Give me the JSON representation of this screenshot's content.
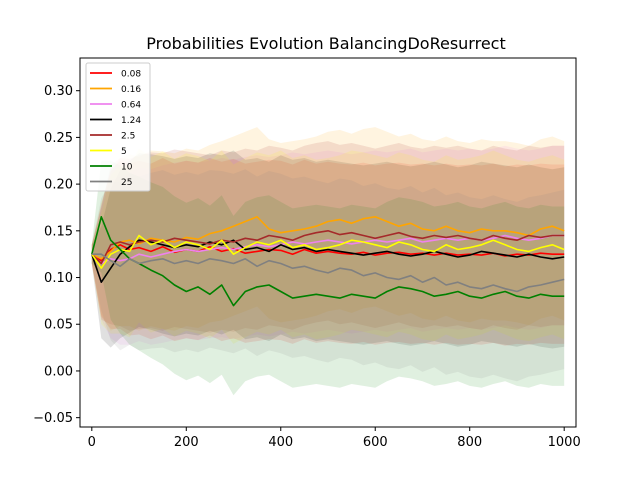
{
  "chart_data": {
    "type": "line",
    "title": "Probabilities Evolution BalancingDoResurrect",
    "xlabel": "",
    "ylabel": "",
    "xlim": [
      -25,
      1025
    ],
    "ylim": [
      -0.06,
      0.335
    ],
    "xticks": [
      0,
      200,
      400,
      600,
      800,
      1000
    ],
    "xtick_labels": [
      "0",
      "200",
      "400",
      "600",
      "800",
      "1000"
    ],
    "yticks": [
      -0.05,
      0.0,
      0.05,
      0.1,
      0.15,
      0.2,
      0.25,
      0.3
    ],
    "ytick_labels": [
      "−0.05",
      "0.00",
      "0.05",
      "0.10",
      "0.15",
      "0.20",
      "0.25",
      "0.30"
    ],
    "grid": false,
    "legend_position": "upper-left",
    "band": "mean ± std (shaded)",
    "x": [
      0,
      20,
      40,
      60,
      80,
      100,
      125,
      150,
      175,
      200,
      225,
      250,
      275,
      300,
      325,
      350,
      375,
      400,
      425,
      450,
      475,
      500,
      525,
      550,
      575,
      600,
      625,
      650,
      675,
      700,
      725,
      750,
      775,
      800,
      825,
      850,
      875,
      900,
      925,
      950,
      975,
      1000
    ],
    "series": [
      {
        "name": "0.08",
        "color": "#ff0000",
        "values": [
          0.125,
          0.118,
          0.13,
          0.135,
          0.13,
          0.132,
          0.128,
          0.133,
          0.127,
          0.13,
          0.128,
          0.133,
          0.128,
          0.131,
          0.126,
          0.128,
          0.13,
          0.129,
          0.125,
          0.13,
          0.126,
          0.128,
          0.126,
          0.125,
          0.127,
          0.124,
          0.126,
          0.127,
          0.125,
          0.126,
          0.124,
          0.126,
          0.124,
          0.125,
          0.124,
          0.126,
          0.123,
          0.125,
          0.124,
          0.126,
          0.125,
          0.125
        ],
        "std": [
          0.01,
          0.06,
          0.085,
          0.09,
          0.092,
          0.093,
          0.094,
          0.095,
          0.095,
          0.095,
          0.095,
          0.095,
          0.096,
          0.096,
          0.096,
          0.096,
          0.096,
          0.096,
          0.096,
          0.096,
          0.096,
          0.096,
          0.096,
          0.096,
          0.096,
          0.096,
          0.096,
          0.096,
          0.096,
          0.096,
          0.096,
          0.096,
          0.096,
          0.096,
          0.096,
          0.096,
          0.096,
          0.096,
          0.096,
          0.096,
          0.096,
          0.096
        ]
      },
      {
        "name": "0.16",
        "color": "#ffa500",
        "values": [
          0.125,
          0.12,
          0.128,
          0.138,
          0.14,
          0.136,
          0.142,
          0.14,
          0.138,
          0.143,
          0.141,
          0.147,
          0.15,
          0.155,
          0.16,
          0.165,
          0.152,
          0.148,
          0.15,
          0.152,
          0.155,
          0.16,
          0.162,
          0.158,
          0.163,
          0.165,
          0.16,
          0.155,
          0.158,
          0.152,
          0.15,
          0.155,
          0.15,
          0.148,
          0.152,
          0.15,
          0.15,
          0.148,
          0.145,
          0.152,
          0.155,
          0.15
        ],
        "std": [
          0.01,
          0.06,
          0.085,
          0.09,
          0.092,
          0.093,
          0.094,
          0.095,
          0.095,
          0.095,
          0.095,
          0.095,
          0.096,
          0.096,
          0.096,
          0.096,
          0.096,
          0.096,
          0.096,
          0.096,
          0.096,
          0.096,
          0.096,
          0.096,
          0.096,
          0.096,
          0.096,
          0.096,
          0.096,
          0.096,
          0.096,
          0.096,
          0.096,
          0.096,
          0.096,
          0.096,
          0.096,
          0.096,
          0.096,
          0.096,
          0.096,
          0.096
        ]
      },
      {
        "name": "0.64",
        "color": "#ee82ee",
        "values": [
          0.125,
          0.115,
          0.12,
          0.118,
          0.12,
          0.125,
          0.122,
          0.125,
          0.128,
          0.13,
          0.128,
          0.13,
          0.132,
          0.13,
          0.133,
          0.135,
          0.133,
          0.135,
          0.138,
          0.136,
          0.138,
          0.14,
          0.138,
          0.136,
          0.138,
          0.14,
          0.138,
          0.14,
          0.142,
          0.138,
          0.14,
          0.142,
          0.14,
          0.142,
          0.14,
          0.142,
          0.145,
          0.142,
          0.14,
          0.142,
          0.145,
          0.145
        ],
        "std": [
          0.01,
          0.06,
          0.085,
          0.09,
          0.092,
          0.093,
          0.094,
          0.095,
          0.095,
          0.095,
          0.095,
          0.095,
          0.096,
          0.096,
          0.096,
          0.096,
          0.096,
          0.096,
          0.096,
          0.096,
          0.096,
          0.096,
          0.096,
          0.096,
          0.096,
          0.096,
          0.096,
          0.096,
          0.096,
          0.096,
          0.096,
          0.096,
          0.096,
          0.096,
          0.096,
          0.096,
          0.096,
          0.096,
          0.096,
          0.096,
          0.096,
          0.096
        ]
      },
      {
        "name": "1.24",
        "color": "#000000",
        "values": [
          0.125,
          0.095,
          0.11,
          0.125,
          0.133,
          0.14,
          0.138,
          0.135,
          0.132,
          0.135,
          0.133,
          0.138,
          0.135,
          0.14,
          0.13,
          0.132,
          0.128,
          0.135,
          0.13,
          0.132,
          0.128,
          0.13,
          0.128,
          0.126,
          0.124,
          0.126,
          0.128,
          0.125,
          0.123,
          0.125,
          0.128,
          0.125,
          0.122,
          0.124,
          0.128,
          0.126,
          0.124,
          0.122,
          0.125,
          0.122,
          0.12,
          0.122
        ],
        "std": [
          0.01,
          0.06,
          0.085,
          0.09,
          0.092,
          0.093,
          0.094,
          0.095,
          0.095,
          0.095,
          0.095,
          0.095,
          0.096,
          0.096,
          0.096,
          0.096,
          0.096,
          0.096,
          0.096,
          0.096,
          0.096,
          0.096,
          0.096,
          0.096,
          0.096,
          0.096,
          0.096,
          0.096,
          0.096,
          0.096,
          0.096,
          0.096,
          0.096,
          0.096,
          0.096,
          0.096,
          0.096,
          0.096,
          0.096,
          0.096,
          0.096,
          0.096
        ]
      },
      {
        "name": "2.5",
        "color": "#a52a2a",
        "values": [
          0.125,
          0.115,
          0.135,
          0.138,
          0.135,
          0.138,
          0.14,
          0.138,
          0.142,
          0.14,
          0.138,
          0.136,
          0.14,
          0.138,
          0.142,
          0.14,
          0.145,
          0.143,
          0.14,
          0.145,
          0.148,
          0.15,
          0.146,
          0.148,
          0.145,
          0.142,
          0.145,
          0.148,
          0.144,
          0.142,
          0.145,
          0.143,
          0.145,
          0.142,
          0.14,
          0.145,
          0.142,
          0.14,
          0.145,
          0.143,
          0.145,
          0.145
        ],
        "std": [
          0.01,
          0.06,
          0.085,
          0.09,
          0.092,
          0.093,
          0.094,
          0.095,
          0.095,
          0.095,
          0.095,
          0.095,
          0.096,
          0.096,
          0.096,
          0.096,
          0.096,
          0.096,
          0.096,
          0.096,
          0.096,
          0.096,
          0.096,
          0.096,
          0.096,
          0.096,
          0.096,
          0.096,
          0.096,
          0.096,
          0.096,
          0.096,
          0.096,
          0.096,
          0.096,
          0.096,
          0.096,
          0.096,
          0.096,
          0.096,
          0.096,
          0.096
        ]
      },
      {
        "name": "5",
        "color": "#ffff00",
        "values": [
          0.125,
          0.11,
          0.125,
          0.13,
          0.128,
          0.145,
          0.135,
          0.14,
          0.132,
          0.138,
          0.135,
          0.13,
          0.14,
          0.125,
          0.132,
          0.138,
          0.135,
          0.14,
          0.132,
          0.135,
          0.13,
          0.132,
          0.135,
          0.14,
          0.138,
          0.135,
          0.132,
          0.138,
          0.135,
          0.13,
          0.128,
          0.135,
          0.13,
          0.132,
          0.135,
          0.14,
          0.135,
          0.13,
          0.128,
          0.132,
          0.135,
          0.13
        ],
        "std": [
          0.01,
          0.06,
          0.085,
          0.09,
          0.092,
          0.093,
          0.094,
          0.095,
          0.095,
          0.095,
          0.095,
          0.095,
          0.096,
          0.096,
          0.096,
          0.096,
          0.096,
          0.096,
          0.096,
          0.096,
          0.096,
          0.096,
          0.096,
          0.096,
          0.096,
          0.096,
          0.096,
          0.096,
          0.096,
          0.096,
          0.096,
          0.096,
          0.096,
          0.096,
          0.096,
          0.096,
          0.096,
          0.096,
          0.096,
          0.096,
          0.096,
          0.096
        ]
      },
      {
        "name": "10",
        "color": "#008000",
        "values": [
          0.125,
          0.165,
          0.14,
          0.13,
          0.12,
          0.115,
          0.108,
          0.102,
          0.092,
          0.085,
          0.09,
          0.082,
          0.092,
          0.07,
          0.085,
          0.09,
          0.092,
          0.085,
          0.078,
          0.08,
          0.082,
          0.08,
          0.078,
          0.082,
          0.08,
          0.078,
          0.085,
          0.09,
          0.088,
          0.085,
          0.08,
          0.082,
          0.085,
          0.08,
          0.078,
          0.082,
          0.085,
          0.08,
          0.078,
          0.082,
          0.08,
          0.08
        ],
        "std": [
          0.01,
          0.06,
          0.085,
          0.09,
          0.092,
          0.093,
          0.094,
          0.095,
          0.095,
          0.095,
          0.095,
          0.095,
          0.096,
          0.096,
          0.096,
          0.096,
          0.096,
          0.096,
          0.096,
          0.096,
          0.096,
          0.096,
          0.096,
          0.096,
          0.096,
          0.096,
          0.096,
          0.096,
          0.096,
          0.096,
          0.096,
          0.096,
          0.096,
          0.096,
          0.096,
          0.096,
          0.096,
          0.096,
          0.096,
          0.096,
          0.096,
          0.096
        ]
      },
      {
        "name": "25",
        "color": "#808080",
        "values": [
          0.125,
          0.125,
          0.118,
          0.112,
          0.12,
          0.115,
          0.118,
          0.12,
          0.115,
          0.118,
          0.115,
          0.12,
          0.118,
          0.115,
          0.12,
          0.112,
          0.118,
          0.115,
          0.11,
          0.112,
          0.108,
          0.105,
          0.11,
          0.108,
          0.102,
          0.105,
          0.1,
          0.098,
          0.102,
          0.095,
          0.1,
          0.092,
          0.095,
          0.09,
          0.088,
          0.092,
          0.088,
          0.085,
          0.09,
          0.092,
          0.095,
          0.098
        ],
        "std": [
          0.01,
          0.06,
          0.085,
          0.09,
          0.092,
          0.093,
          0.094,
          0.095,
          0.095,
          0.095,
          0.095,
          0.095,
          0.096,
          0.096,
          0.096,
          0.096,
          0.096,
          0.096,
          0.096,
          0.096,
          0.096,
          0.096,
          0.096,
          0.096,
          0.096,
          0.096,
          0.096,
          0.096,
          0.096,
          0.096,
          0.096,
          0.096,
          0.096,
          0.096,
          0.096,
          0.096,
          0.096,
          0.096,
          0.096,
          0.096,
          0.096,
          0.096
        ]
      }
    ]
  }
}
